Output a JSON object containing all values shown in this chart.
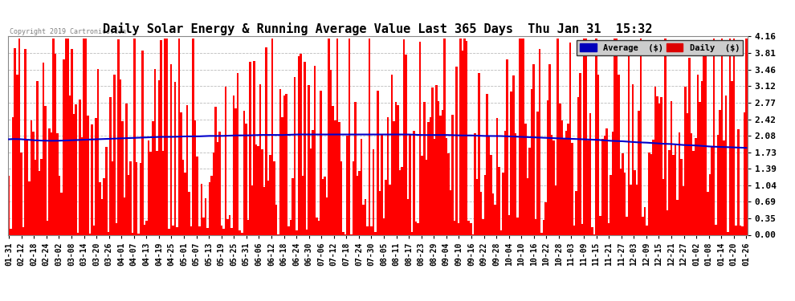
{
  "title": "Daily Solar Energy & Running Average Value Last 365 Days  Thu Jan 31  15:32",
  "copyright": "Copyright 2019 Cartronics.com",
  "ylim": [
    0.0,
    4.16
  ],
  "yticks": [
    0.0,
    0.35,
    0.69,
    1.04,
    1.39,
    1.73,
    2.08,
    2.42,
    2.77,
    3.12,
    3.46,
    3.81,
    4.16
  ],
  "bar_color": "#ff0000",
  "avg_color": "#0000cc",
  "bg_color": "#ffffff",
  "grid_color": "#aaaaaa",
  "title_fontsize": 11,
  "legend_avg_color": "#0000bb",
  "legend_daily_color": "#dd0000",
  "xtick_labels": [
    "01-31",
    "02-12",
    "02-18",
    "02-24",
    "03-02",
    "03-08",
    "03-14",
    "03-20",
    "03-26",
    "04-01",
    "04-07",
    "04-13",
    "04-19",
    "04-25",
    "05-01",
    "05-07",
    "05-13",
    "05-19",
    "05-25",
    "05-31",
    "06-06",
    "06-12",
    "06-18",
    "06-24",
    "06-30",
    "07-06",
    "07-12",
    "07-18",
    "07-24",
    "07-30",
    "08-05",
    "08-11",
    "08-17",
    "08-23",
    "08-29",
    "09-04",
    "09-10",
    "09-16",
    "09-22",
    "09-28",
    "10-04",
    "10-10",
    "10-16",
    "10-22",
    "10-28",
    "11-03",
    "11-09",
    "11-15",
    "11-21",
    "11-27",
    "12-03",
    "12-09",
    "12-15",
    "12-21",
    "12-27",
    "01-02",
    "01-08",
    "01-14",
    "01-20",
    "01-26"
  ],
  "avg_line_values": [
    2.0,
    2.0,
    1.98,
    1.97,
    1.97,
    1.98,
    1.99,
    2.0,
    2.01,
    2.02,
    2.03,
    2.04,
    2.05,
    2.05,
    2.06,
    2.06,
    2.07,
    2.07,
    2.08,
    2.08,
    2.09,
    2.09,
    2.09,
    2.1,
    2.1,
    2.1,
    2.1,
    2.1,
    2.1,
    2.1,
    2.1,
    2.1,
    2.1,
    2.09,
    2.09,
    2.09,
    2.08,
    2.08,
    2.07,
    2.07,
    2.06,
    2.05,
    2.04,
    2.03,
    2.02,
    2.01,
    2.0,
    1.99,
    1.97,
    1.96,
    1.94,
    1.93,
    1.91,
    1.9,
    1.88,
    1.87,
    1.85,
    1.84,
    1.83,
    1.82
  ]
}
